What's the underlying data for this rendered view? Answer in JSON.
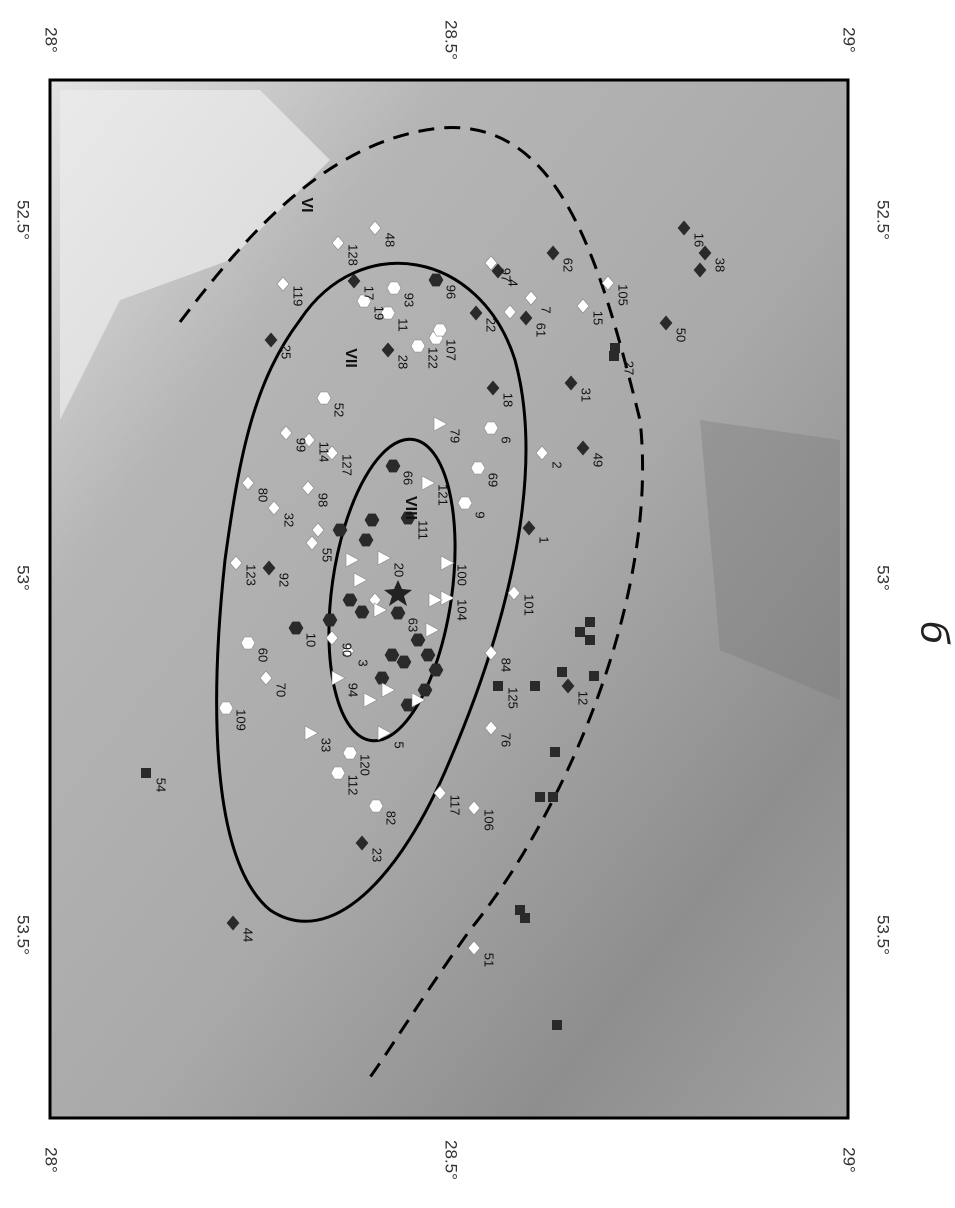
{
  "axes": {
    "top": [
      "28°",
      "28.5°",
      "29°"
    ],
    "bottom": [
      "28°",
      "28.5°",
      "29°"
    ],
    "left": [
      "52.5°",
      "53°",
      "53.5°"
    ],
    "right": [
      "52.5°",
      "53°",
      "53.5°"
    ]
  },
  "zones": [
    "VI",
    "VII",
    "VIII"
  ],
  "points": [
    "48",
    "128",
    "119",
    "93",
    "96",
    "97",
    "62",
    "16",
    "38",
    "105",
    "7",
    "4",
    "17",
    "19",
    "11",
    "22",
    "61",
    "15",
    "50",
    "107",
    "122",
    "28",
    "25",
    "27",
    "18",
    "31",
    "52",
    "79",
    "6",
    "49",
    "2",
    "99",
    "114",
    "127",
    "66",
    "69",
    "121",
    "80",
    "98",
    "9",
    "32",
    "111",
    "1",
    "55",
    "123",
    "20",
    "100",
    "92",
    "104",
    "101",
    "63",
    "10",
    "60",
    "90",
    "3",
    "84",
    "70",
    "94",
    "125",
    "12",
    "109",
    "76",
    "33",
    "5",
    "120",
    "112",
    "117",
    "106",
    "54",
    "82",
    "23",
    "44",
    "51"
  ],
  "caption": "б"
}
